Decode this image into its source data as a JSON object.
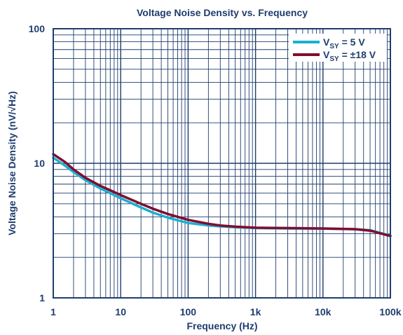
{
  "chart_data": {
    "type": "line",
    "title": "Voltage Noise Density vs. Frequency",
    "xlabel": "Frequency (Hz)",
    "ylabel": "Voltage Noise Density (nV/√Hz)",
    "x_scale": "log",
    "y_scale": "log",
    "xlim": [
      1,
      100000
    ],
    "ylim": [
      1,
      100
    ],
    "x_ticks": [
      1,
      10,
      100,
      1000,
      10000,
      100000
    ],
    "x_tick_labels": [
      "1",
      "10",
      "100",
      "1k",
      "10k",
      "100k"
    ],
    "y_ticks": [
      1,
      10,
      100
    ],
    "y_tick_labels": [
      "1",
      "10",
      "100"
    ],
    "grid": true,
    "legend_position": "top-right",
    "colors": {
      "grid": "#1f3d6e",
      "text": "#1f3d6e"
    },
    "series": [
      {
        "name": "V_SY = 5 V",
        "legend_main": "V",
        "legend_sub": "SY",
        "legend_rest": " = 5 V",
        "color": "#1ab0d0",
        "x": [
          1,
          1.5,
          2,
          3,
          5,
          7,
          10,
          20,
          30,
          50,
          100,
          200,
          300,
          500,
          1000,
          3000,
          10000,
          30000,
          50000,
          100000
        ],
        "y": [
          11.0,
          9.6,
          8.6,
          7.5,
          6.5,
          6.0,
          5.5,
          4.7,
          4.3,
          3.95,
          3.6,
          3.45,
          3.4,
          3.35,
          3.3,
          3.28,
          3.27,
          3.24,
          3.18,
          2.9
        ]
      },
      {
        "name": "V_SY = ±18 V",
        "legend_main": "V",
        "legend_sub": "SY",
        "legend_rest": " = ±18 V",
        "color": "#800d2f",
        "x": [
          1,
          1.5,
          2,
          3,
          5,
          7,
          10,
          20,
          30,
          50,
          100,
          200,
          300,
          500,
          1000,
          3000,
          10000,
          30000,
          50000,
          100000
        ],
        "y": [
          11.7,
          10.2,
          9.0,
          7.8,
          6.8,
          6.3,
          5.8,
          5.0,
          4.6,
          4.2,
          3.8,
          3.55,
          3.45,
          3.38,
          3.32,
          3.3,
          3.28,
          3.24,
          3.16,
          2.88
        ]
      }
    ]
  }
}
